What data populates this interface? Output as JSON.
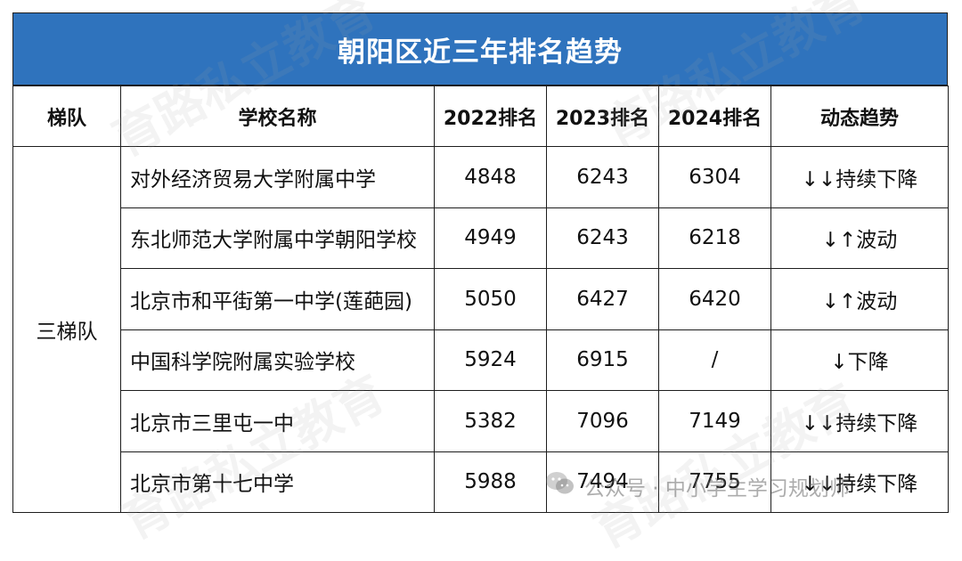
{
  "title": "朝阳区近三年排名趋势",
  "headers": [
    "梯队",
    "学校名称",
    "2022排名",
    "2023排名",
    "2024排名",
    "动态趋势"
  ],
  "tier": "三梯队",
  "rows": [
    {
      "school": "对外经济贸易大学附属中学",
      "r2022": "4848",
      "r2023": "6243",
      "r2024": "6304",
      "trend": "↓↓持续下降"
    },
    {
      "school": "东北师范大学附属中学朝阳学校",
      "r2022": "4949",
      "r2023": "6243",
      "r2024": "6218",
      "trend": "↓↑波动"
    },
    {
      "school": "北京市和平街第一中学(莲葩园)",
      "r2022": "5050",
      "r2023": "6427",
      "r2024": "6420",
      "trend": "↓↑波动"
    },
    {
      "school": "中国科学院附属实验学校",
      "r2022": "5924",
      "r2023": "6915",
      "r2024": "/",
      "trend": "↓下降"
    },
    {
      "school": "北京市三里屯一中",
      "r2022": "5382",
      "r2023": "7096",
      "r2024": "7149",
      "trend": "↓↓持续下降"
    },
    {
      "school": "北京市第十七中学",
      "r2022": "5988",
      "r2023": "7494",
      "r2024": "7755",
      "trend": "↓↓持续下降"
    }
  ],
  "watermark_text": "育路私立教育",
  "footer": "公众号 · 中小学生学习规划师",
  "colors": {
    "title_bg": "#2f73bd",
    "border": "#1d1d1d"
  },
  "icons": {
    "footer": "wechat-icon"
  }
}
